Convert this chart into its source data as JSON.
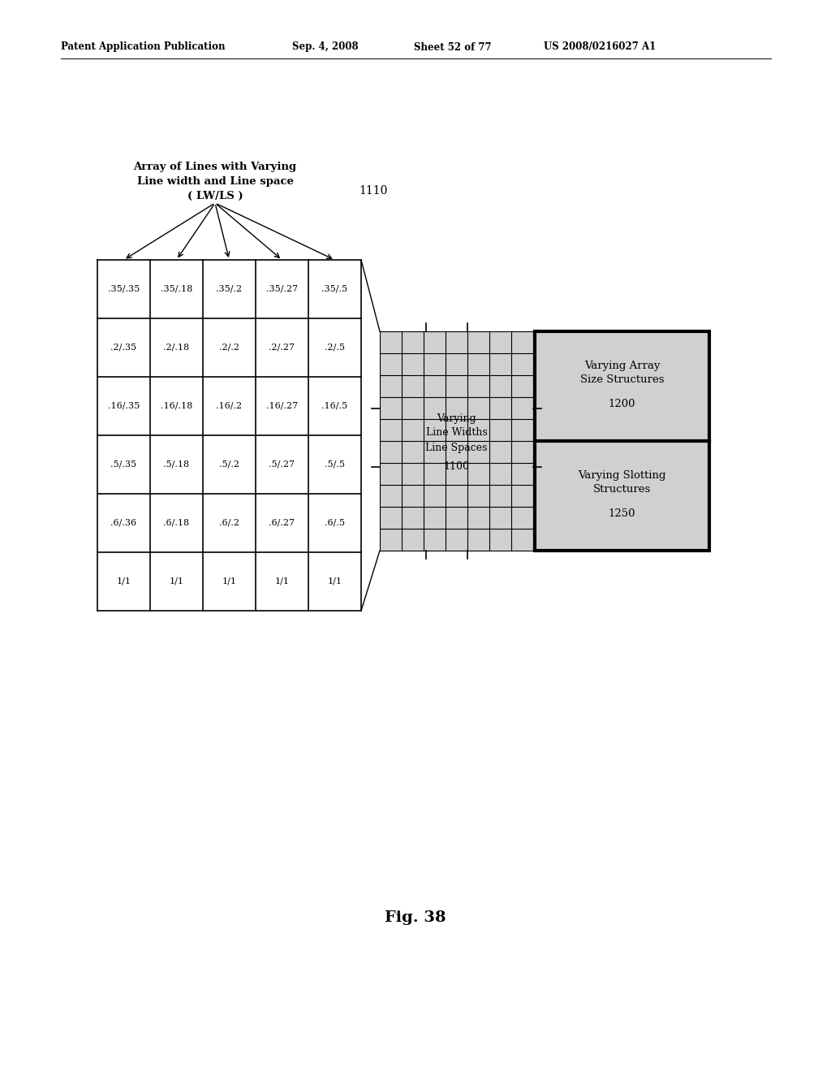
{
  "header_text": "Patent Application Publication",
  "header_date": "Sep. 4, 2008",
  "header_sheet": "Sheet 52 of 77",
  "header_patent": "US 2008/0216027 A1",
  "figure_label": "Fig. 38",
  "title_line1": "Array of Lines with Varying",
  "title_line2": "Line width and Line space",
  "title_line3": "( LW/LS )",
  "label_1110": "1110",
  "label_1100": "1100",
  "label_1200": "1200",
  "label_1250": "1250",
  "grid_cells": [
    [
      ".35/.35",
      ".35/.18",
      ".35/.2",
      ".35/.27",
      ".35/.5"
    ],
    [
      ".2/.35",
      ".2/.18",
      ".2/.2",
      ".2/.27",
      ".2/.5"
    ],
    [
      ".16/.35",
      ".16/.18",
      ".16/.2",
      ".16/.27",
      ".16/.5"
    ],
    [
      ".5/.35",
      ".5/.18",
      ".5/.2",
      ".5/.27",
      ".5/.5"
    ],
    [
      ".6/.36",
      ".6/.18",
      ".6/.2",
      ".6/.27",
      ".6/.5"
    ],
    [
      "1/1",
      "1/1",
      "1/1",
      "1/1",
      "1/1"
    ]
  ],
  "bg_color": "#ffffff",
  "grid_line_color": "#000000",
  "thick_border_color": "#000000",
  "text_color": "#000000",
  "shaded_color": "#d0d0d0"
}
